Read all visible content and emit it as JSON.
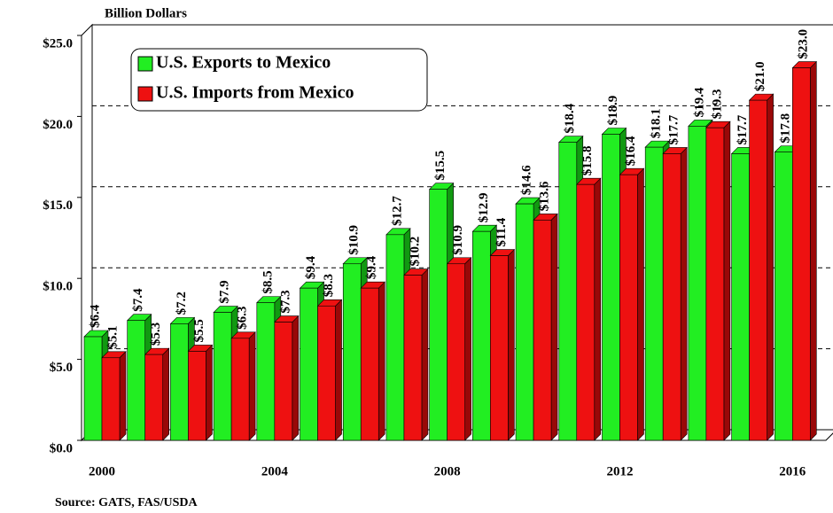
{
  "chart_data": {
    "type": "bar",
    "title": "Billion Dollars",
    "source": "Source:  GATS, FAS/USDA",
    "categories": [
      "2000",
      null,
      null,
      null,
      "2004",
      null,
      null,
      null,
      "2008",
      null,
      null,
      null,
      "2012",
      null,
      null,
      null,
      "2016"
    ],
    "series": [
      {
        "name": "U.S. Exports to Mexico",
        "color": "#22ee22",
        "values": [
          6.4,
          7.4,
          7.2,
          7.9,
          8.5,
          9.4,
          10.9,
          12.7,
          15.5,
          12.9,
          14.6,
          18.4,
          18.9,
          18.1,
          19.4,
          17.7,
          17.8
        ],
        "value_labels": [
          "$6.4",
          "$7.4",
          "$7.2",
          "$7.9",
          "$8.5",
          "$9.4",
          "$10.9",
          "$12.7",
          "$15.5",
          "$12.9",
          "$14.6",
          "$18.4",
          "$18.9",
          "$18.1",
          "$19.4",
          "$17.7",
          "$17.8"
        ]
      },
      {
        "name": "U.S. Imports from Mexico",
        "color": "#ee1111",
        "values": [
          5.1,
          5.3,
          5.5,
          6.3,
          7.3,
          8.3,
          9.4,
          10.2,
          10.9,
          11.4,
          13.6,
          15.8,
          16.4,
          17.7,
          19.3,
          21.0,
          23.0
        ],
        "value_labels": [
          "$5.1",
          "$5.3",
          "$5.5",
          "$6.3",
          "$7.3",
          "$8.3",
          "$9.4",
          "$10.2",
          "$10.9",
          "$11.4",
          "$13.6",
          "$15.8",
          "$16.4",
          "$17.7",
          "$19.3",
          "$21.0",
          "$23.0"
        ]
      }
    ],
    "ylim": [
      0,
      25
    ],
    "yticks": [
      {
        "value": 0,
        "label": "$0.0"
      },
      {
        "value": 5,
        "label": "$5.0"
      },
      {
        "value": 10,
        "label": "$10.0"
      },
      {
        "value": 15,
        "label": "$15.0"
      },
      {
        "value": 20,
        "label": "$20.0"
      },
      {
        "value": 25,
        "label": "$25.0"
      }
    ],
    "grid": true,
    "legend": "top-left"
  }
}
